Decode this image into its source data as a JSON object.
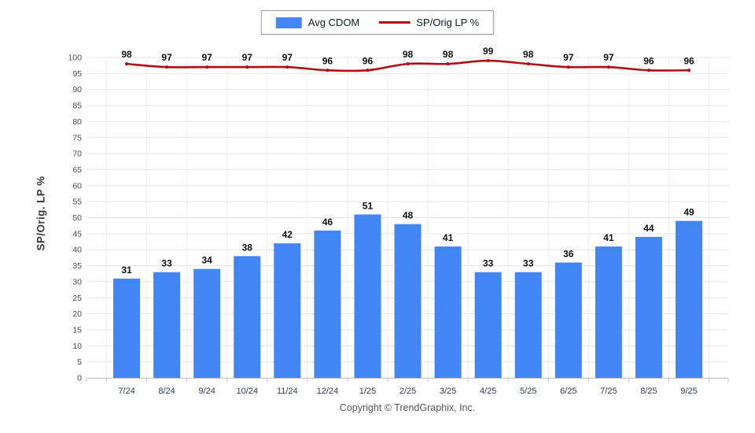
{
  "legend": {
    "items": [
      {
        "label": "Avg CDOM",
        "swatch": "bar-swatch"
      },
      {
        "label": "SP/Orig LP %",
        "swatch": "line-swatch"
      }
    ]
  },
  "y_axis_title": "SP/Orig. LP %",
  "footer_text": "Copyright © TrendGraphix, Inc.",
  "chart_data": {
    "type": "combo",
    "categories": [
      "7/24",
      "8/24",
      "9/24",
      "10/24",
      "11/24",
      "12/24",
      "1/25",
      "2/25",
      "3/25",
      "4/25",
      "5/25",
      "6/25",
      "7/25",
      "8/25",
      "9/25"
    ],
    "series": [
      {
        "name": "Avg CDOM",
        "type": "bar",
        "color": "#4285f4",
        "values": [
          31,
          33,
          34,
          38,
          42,
          46,
          51,
          48,
          41,
          33,
          33,
          36,
          41,
          44,
          49
        ]
      },
      {
        "name": "SP/Orig LP %",
        "type": "line",
        "color": "#ae1015",
        "values": [
          98,
          97,
          97,
          97,
          97,
          96,
          96,
          98,
          98,
          99,
          98,
          97,
          97,
          96,
          96
        ]
      }
    ],
    "ylabel": "SP/Orig. LP %",
    "ylim": [
      0,
      100
    ],
    "ytick_step": 5,
    "grid": true,
    "data_labels": true,
    "legend_position": "top-center"
  }
}
